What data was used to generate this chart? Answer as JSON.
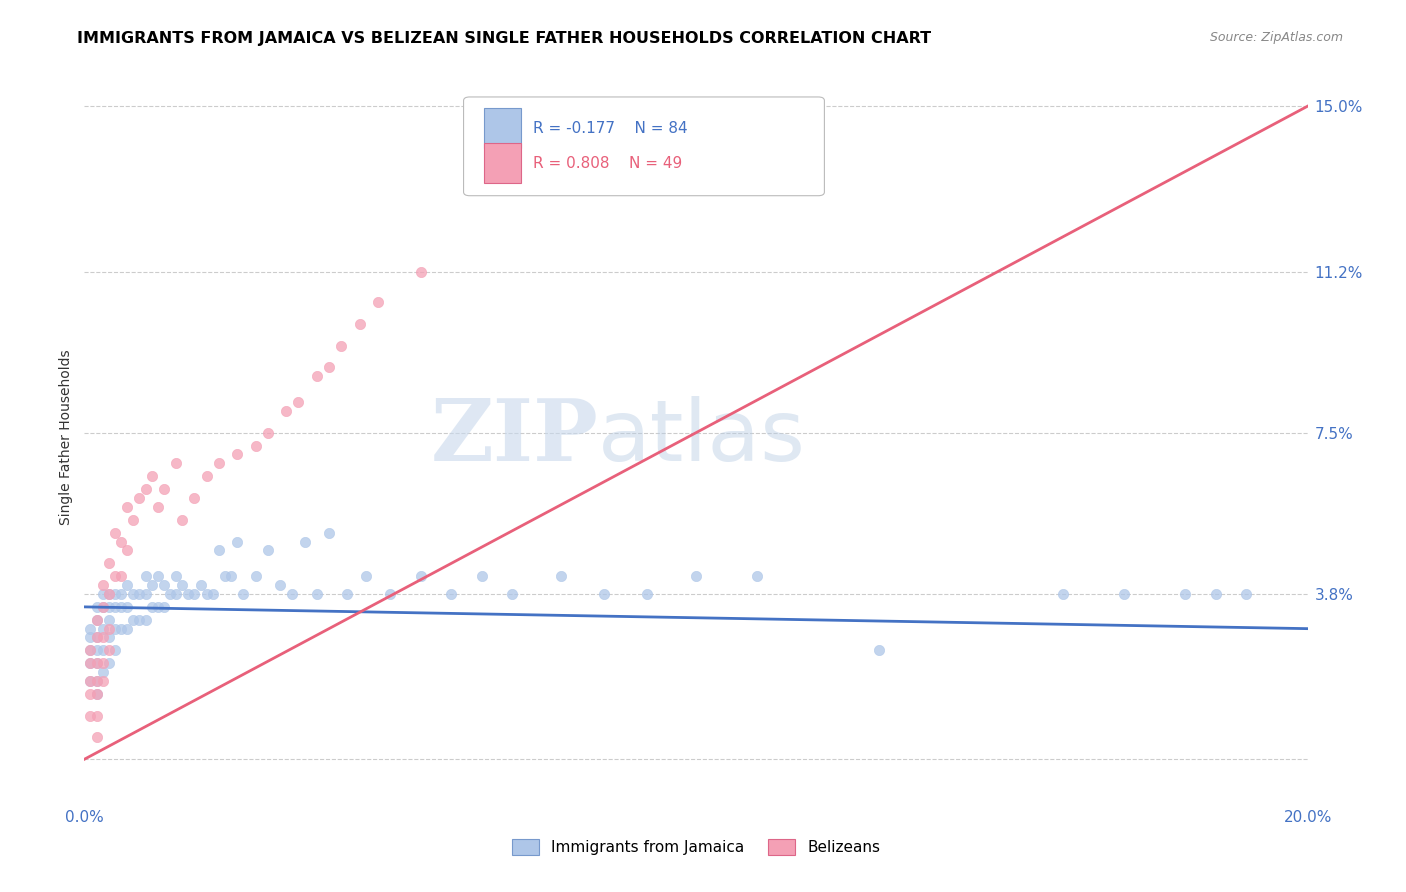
{
  "title": "IMMIGRANTS FROM JAMAICA VS BELIZEAN SINGLE FATHER HOUSEHOLDS CORRELATION CHART",
  "source": "Source: ZipAtlas.com",
  "ylabel": "Single Father Households",
  "legend_label_1": "Immigrants from Jamaica",
  "legend_label_2": "Belizeans",
  "r1": "-0.177",
  "n1": "84",
  "r2": "0.808",
  "n2": "49",
  "color_jamaica": "#aec6e8",
  "color_belize": "#f4a0b5",
  "color_line_jamaica": "#4472c4",
  "color_line_belize": "#e8607a",
  "watermark_zip": "ZIP",
  "watermark_atlas": "atlas",
  "xmin": 0.0,
  "xmax": 0.2,
  "ymin": -0.01,
  "ymax": 0.158,
  "yticks": [
    0.0,
    0.038,
    0.075,
    0.112,
    0.15
  ],
  "ytick_labels": [
    "",
    "3.8%",
    "7.5%",
    "11.2%",
    "15.0%"
  ],
  "xticks": [
    0.0,
    0.05,
    0.1,
    0.15,
    0.2
  ],
  "xtick_labels": [
    "0.0%",
    "",
    "",
    "",
    "20.0%"
  ],
  "jamaica_x": [
    0.001,
    0.001,
    0.001,
    0.001,
    0.001,
    0.002,
    0.002,
    0.002,
    0.002,
    0.002,
    0.002,
    0.002,
    0.003,
    0.003,
    0.003,
    0.003,
    0.003,
    0.004,
    0.004,
    0.004,
    0.004,
    0.004,
    0.005,
    0.005,
    0.005,
    0.005,
    0.006,
    0.006,
    0.006,
    0.007,
    0.007,
    0.007,
    0.008,
    0.008,
    0.009,
    0.009,
    0.01,
    0.01,
    0.01,
    0.011,
    0.011,
    0.012,
    0.012,
    0.013,
    0.013,
    0.014,
    0.015,
    0.015,
    0.016,
    0.017,
    0.018,
    0.019,
    0.02,
    0.021,
    0.022,
    0.023,
    0.024,
    0.025,
    0.026,
    0.028,
    0.03,
    0.032,
    0.034,
    0.036,
    0.038,
    0.04,
    0.043,
    0.046,
    0.05,
    0.055,
    0.06,
    0.065,
    0.07,
    0.078,
    0.085,
    0.092,
    0.1,
    0.11,
    0.13,
    0.16,
    0.17,
    0.18,
    0.185,
    0.19
  ],
  "jamaica_y": [
    0.03,
    0.028,
    0.025,
    0.022,
    0.018,
    0.035,
    0.032,
    0.028,
    0.025,
    0.022,
    0.018,
    0.015,
    0.038,
    0.035,
    0.03,
    0.025,
    0.02,
    0.038,
    0.035,
    0.032,
    0.028,
    0.022,
    0.038,
    0.035,
    0.03,
    0.025,
    0.038,
    0.035,
    0.03,
    0.04,
    0.035,
    0.03,
    0.038,
    0.032,
    0.038,
    0.032,
    0.042,
    0.038,
    0.032,
    0.04,
    0.035,
    0.042,
    0.035,
    0.04,
    0.035,
    0.038,
    0.042,
    0.038,
    0.04,
    0.038,
    0.038,
    0.04,
    0.038,
    0.038,
    0.048,
    0.042,
    0.042,
    0.05,
    0.038,
    0.042,
    0.048,
    0.04,
    0.038,
    0.05,
    0.038,
    0.052,
    0.038,
    0.042,
    0.038,
    0.042,
    0.038,
    0.042,
    0.038,
    0.042,
    0.038,
    0.038,
    0.042,
    0.042,
    0.025,
    0.038,
    0.038,
    0.038,
    0.038,
    0.038
  ],
  "belize_x": [
    0.001,
    0.001,
    0.001,
    0.001,
    0.001,
    0.002,
    0.002,
    0.002,
    0.002,
    0.002,
    0.002,
    0.002,
    0.003,
    0.003,
    0.003,
    0.003,
    0.003,
    0.004,
    0.004,
    0.004,
    0.004,
    0.005,
    0.005,
    0.006,
    0.006,
    0.007,
    0.007,
    0.008,
    0.009,
    0.01,
    0.011,
    0.012,
    0.013,
    0.015,
    0.016,
    0.018,
    0.02,
    0.022,
    0.025,
    0.028,
    0.03,
    0.033,
    0.035,
    0.038,
    0.04,
    0.042,
    0.045,
    0.048,
    0.055
  ],
  "belize_y": [
    0.025,
    0.022,
    0.018,
    0.015,
    0.01,
    0.032,
    0.028,
    0.022,
    0.018,
    0.015,
    0.01,
    0.005,
    0.04,
    0.035,
    0.028,
    0.022,
    0.018,
    0.045,
    0.038,
    0.03,
    0.025,
    0.052,
    0.042,
    0.05,
    0.042,
    0.058,
    0.048,
    0.055,
    0.06,
    0.062,
    0.065,
    0.058,
    0.062,
    0.068,
    0.055,
    0.06,
    0.065,
    0.068,
    0.07,
    0.072,
    0.075,
    0.08,
    0.082,
    0.088,
    0.09,
    0.095,
    0.1,
    0.105,
    0.112
  ],
  "belize_line_x": [
    0.0,
    0.2
  ],
  "belize_line_y": [
    0.0,
    0.15
  ],
  "jamaica_line_x": [
    0.0,
    0.2
  ],
  "jamaica_line_y": [
    0.035,
    0.03
  ]
}
